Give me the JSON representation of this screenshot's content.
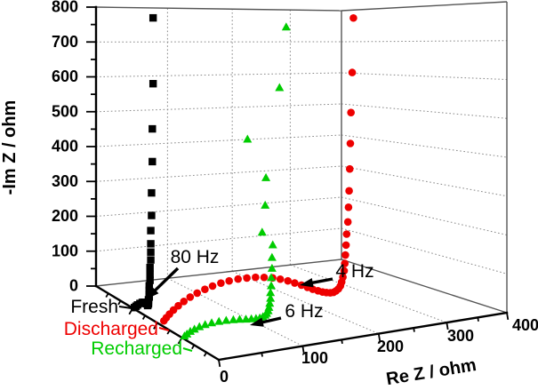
{
  "figure": {
    "background": "#ffffff",
    "frame_color": "#555555",
    "grid_color": "#888888",
    "axis_color": "#000000"
  },
  "chart_data": {
    "type": "scatter",
    "subtype": "3d-nyquist-impedance",
    "title": "",
    "xlabel": "Re Z / ohm",
    "ylabel": "-Im Z / ohm",
    "xlim": [
      0,
      400
    ],
    "ylim": [
      0,
      800
    ],
    "x_ticks": [
      0,
      100,
      200,
      300,
      400
    ],
    "x_tick_labels": [
      "0",
      "100",
      "200",
      "300",
      "400"
    ],
    "y_ticks": [
      0,
      100,
      200,
      300,
      400,
      500,
      600,
      700,
      800
    ],
    "y_tick_labels": [
      "0",
      "100",
      "200",
      "300",
      "400",
      "500",
      "600",
      "700",
      "800"
    ],
    "grid": "dotted",
    "legend_position": "bottom-left-axis-labels",
    "series": [
      {
        "name": "Fresh",
        "color": "#000000",
        "marker": "square",
        "depth": 0.3,
        "points": [
          [
            2,
            1
          ],
          [
            4,
            4
          ],
          [
            6,
            7
          ],
          [
            9,
            10
          ],
          [
            12,
            12
          ],
          [
            14,
            12
          ],
          [
            16,
            10
          ],
          [
            18,
            7
          ],
          [
            19,
            4
          ],
          [
            19,
            2
          ],
          [
            20,
            6
          ],
          [
            20,
            11
          ],
          [
            20,
            17
          ],
          [
            21,
            24
          ],
          [
            21,
            32
          ],
          [
            21,
            42
          ],
          [
            21,
            54
          ],
          [
            22,
            68
          ],
          [
            22,
            84
          ],
          [
            22,
            102
          ],
          [
            23,
            122
          ],
          [
            23,
            143
          ],
          [
            23,
            165
          ],
          [
            23,
            200
          ],
          [
            24,
            240
          ],
          [
            24,
            300
          ],
          [
            25,
            383
          ],
          [
            25,
            470
          ],
          [
            26,
            590
          ],
          [
            26,
            765
          ]
        ]
      },
      {
        "name": "Discharged",
        "color": "#ee0000",
        "marker": "circle",
        "depth": 0.5,
        "points": [
          [
            8,
            3
          ],
          [
            11,
            10
          ],
          [
            15,
            18
          ],
          [
            20,
            27
          ],
          [
            26,
            36
          ],
          [
            33,
            45
          ],
          [
            41,
            54
          ],
          [
            50,
            62
          ],
          [
            60,
            69
          ],
          [
            70,
            75
          ],
          [
            81,
            80
          ],
          [
            92,
            83
          ],
          [
            104,
            85
          ],
          [
            116,
            85
          ],
          [
            128,
            84
          ],
          [
            140,
            81
          ],
          [
            152,
            77
          ],
          [
            163,
            71
          ],
          [
            174,
            64
          ],
          [
            184,
            56
          ],
          [
            194,
            48
          ],
          [
            203,
            40
          ],
          [
            211,
            33
          ],
          [
            219,
            27
          ],
          [
            226,
            22
          ],
          [
            232,
            19
          ],
          [
            238,
            17
          ],
          [
            243,
            17
          ],
          [
            247,
            20
          ],
          [
            251,
            25
          ],
          [
            254,
            32
          ],
          [
            256,
            42
          ],
          [
            258,
            55
          ],
          [
            260,
            72
          ],
          [
            261,
            92
          ],
          [
            262,
            115
          ],
          [
            263,
            142
          ],
          [
            264,
            172
          ],
          [
            266,
            205
          ],
          [
            267,
            245
          ],
          [
            268,
            290
          ],
          [
            269,
            350
          ],
          [
            270,
            420
          ],
          [
            271,
            505
          ],
          [
            273,
            615
          ],
          [
            275,
            765
          ]
        ]
      },
      {
        "name": "Recharged",
        "color": "#00cc00",
        "marker": "triangle",
        "depth": 0.7,
        "points": [
          [
            3,
            2
          ],
          [
            6,
            6
          ],
          [
            10,
            11
          ],
          [
            15,
            15
          ],
          [
            21,
            19
          ],
          [
            28,
            22
          ],
          [
            36,
            24
          ],
          [
            45,
            25
          ],
          [
            54,
            25
          ],
          [
            63,
            24
          ],
          [
            71,
            23
          ],
          [
            79,
            21
          ],
          [
            86,
            20
          ],
          [
            92,
            19
          ],
          [
            97,
            19
          ],
          [
            101,
            21
          ],
          [
            104,
            24
          ],
          [
            106,
            28
          ],
          [
            108,
            34
          ],
          [
            109,
            42
          ],
          [
            110,
            52
          ],
          [
            111,
            64
          ],
          [
            111,
            78
          ],
          [
            112,
            95
          ],
          [
            112,
            115
          ],
          [
            113,
            138
          ],
          [
            113,
            165
          ],
          [
            114,
            196
          ],
          [
            100,
            230
          ],
          [
            104,
            296
          ],
          [
            105,
            364
          ],
          [
            81,
            462
          ],
          [
            123,
            586
          ],
          [
            132,
            737
          ]
        ]
      }
    ],
    "annotations": [
      {
        "text": "80 Hz",
        "series": "Fresh"
      },
      {
        "text": "4 Hz",
        "series": "Discharged"
      },
      {
        "text": "6 Hz",
        "series": "Recharged"
      }
    ]
  }
}
